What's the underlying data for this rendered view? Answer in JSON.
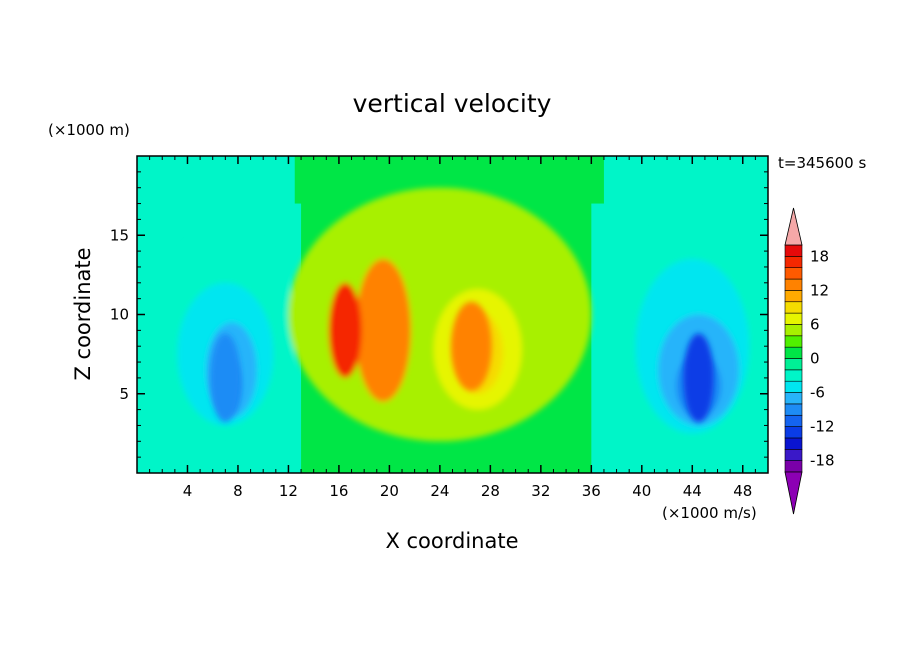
{
  "chart_data": {
    "type": "heatmap",
    "title": "vertical velocity",
    "xlabel": "X coordinate",
    "ylabel": "Z coordinate",
    "y_units": "(×1000 m)",
    "colorbar_units": "(×1000 m/s)",
    "time_label": "t=345600 s",
    "xlim": [
      0,
      50
    ],
    "ylim": [
      0,
      20
    ],
    "x_ticks": [
      4,
      8,
      12,
      16,
      20,
      24,
      28,
      32,
      36,
      40,
      44,
      48
    ],
    "y_ticks": [
      5,
      10,
      15
    ],
    "colorbar": {
      "levels": [
        -20,
        -18,
        -16,
        -14,
        -12,
        -10,
        -8,
        -6,
        -4,
        -2,
        0,
        2,
        4,
        6,
        8,
        10,
        12,
        14,
        16,
        18,
        20
      ],
      "tick_labels": [
        18,
        12,
        6,
        0,
        -6,
        -12,
        -18
      ],
      "colors": [
        "#7a00a8",
        "#3a18c8",
        "#0a14d0",
        "#0a3ce6",
        "#1464f0",
        "#1e8cf5",
        "#28b4fa",
        "#00e6f0",
        "#00f5c8",
        "#00f096",
        "#00e646",
        "#50f000",
        "#a8f000",
        "#e6f500",
        "#f5dc00",
        "#ffaa00",
        "#ff8200",
        "#ff5a00",
        "#f52800",
        "#e60a0a"
      ],
      "under_color": "#8c00b4",
      "over_color": "#f5a8a8"
    },
    "grid": false,
    "features": [
      {
        "name": "central updraft",
        "x": 26.5,
        "z": 8,
        "peak": 12
      },
      {
        "name": "left downdraft",
        "x": 7,
        "z": 6,
        "peak": -10
      },
      {
        "name": "right downdraft",
        "x": 44.5,
        "z": 6,
        "peak": -14
      }
    ]
  }
}
